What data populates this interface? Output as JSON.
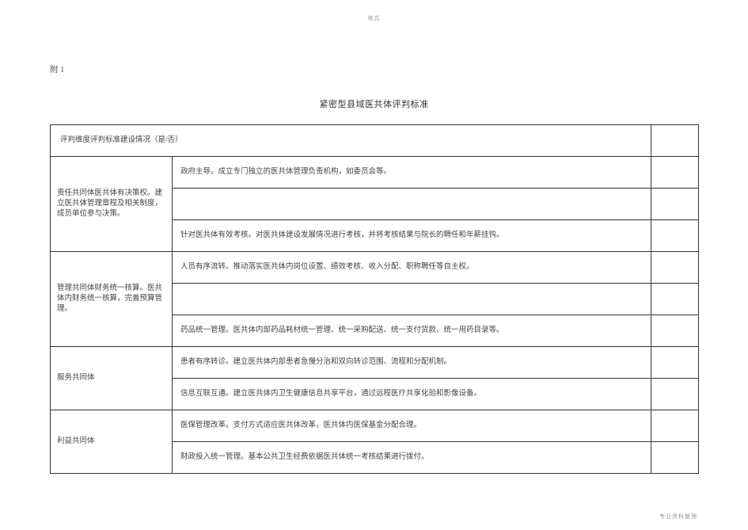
{
  "header_mark": "格式",
  "footer_mark": "专业资料整理",
  "annex_label": "附 1",
  "title": "紧密型县域医共体评判标准",
  "table_header": "评判维度评判标准建设情况（是/否）",
  "groups": [
    {
      "category": "责任共同体医共体有决策权。建立医共体管理章程及相关制度，成员单位参与决策。",
      "rows": [
        "政府主导。成立专门独立的医共体管理负责机构，如委员会等。",
        "",
        "针对医共体有效考核。对医共体建设发展情况进行考核，并将考核结果与院长的聘任和年薪挂钩。"
      ]
    },
    {
      "category": "管理共同体财务统一核算。医共体内财务统一核算，完善预算管理。",
      "rows": [
        "人员有序流转。推动落实医共体内岗位设置、绩效考核、收入分配、职称聘任等自主权。",
        "",
        "药品统一管理。医共体内部药品耗材统一管理、统一采购配送、统一支付货款、统一用药目录等。"
      ]
    },
    {
      "category": "服务共同体",
      "rows": [
        "患者有序转诊。建立医共体内部患者急慢分治和双向转诊范围、流程和分配机制。",
        "信息互联互通。建立医共体内卫生健康信息共享平台，通过远程医疗共享化验和影像设备。"
      ]
    },
    {
      "category": "利益共同体",
      "rows": [
        "医保管理改革。支付方式适应医共体改革，医共体内医保基金分配合理。",
        "财政投入统一管理。基本公共卫生经费依据医共体统一考核结果进行拨付。"
      ]
    }
  ]
}
